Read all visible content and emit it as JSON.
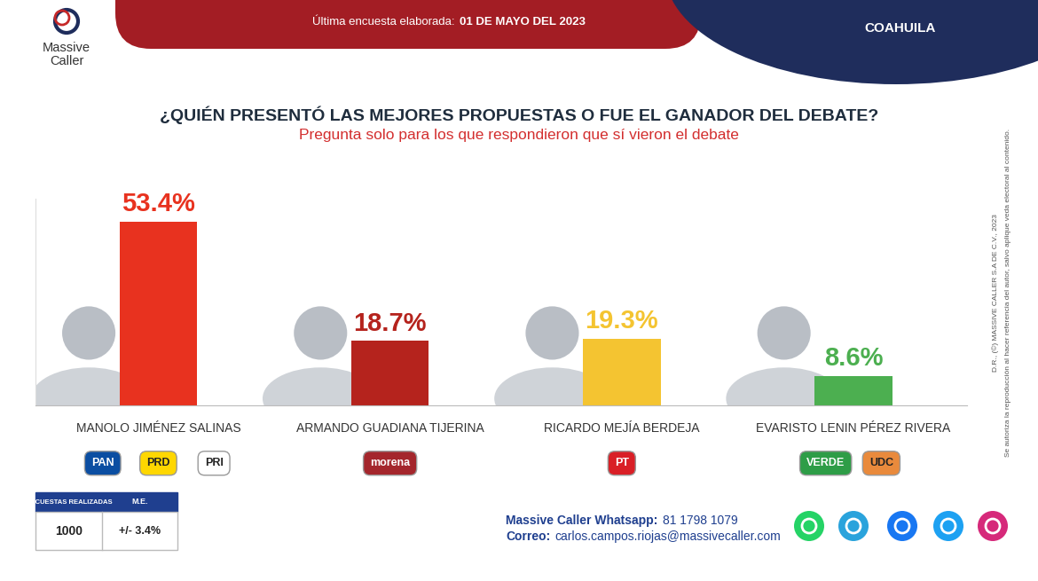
{
  "chart_data": {
    "type": "bar",
    "title": "¿QUIÉN PRESENTÓ LAS MEJORES PROPUESTAS O FUE EL GANADOR DEL DEBATE?",
    "subtitle": "Pregunta solo para los que respondieron que sí vieron el debate",
    "categories": [
      "MANOLO JIMÉNEZ SALINAS",
      "ARMANDO GUADIANA TIJERINA",
      "RICARDO MEJÍA BERDEJA",
      "EVARISTO LENIN PÉREZ RIVERA"
    ],
    "values": [
      53.4,
      18.7,
      19.3,
      8.6
    ],
    "value_labels": [
      "53.4%",
      "18.7%",
      "19.3%",
      "8.6%"
    ],
    "colors": [
      "#e8321f",
      "#b5231d",
      "#f4c431",
      "#4caf50"
    ],
    "data_labels": true,
    "ylim": [
      0,
      60
    ],
    "yticks": [],
    "tick_labels": "x",
    "parties": [
      [
        {
          "name": "PAN",
          "color": "#0b4ea2"
        },
        {
          "name": "PRD",
          "color": "#ffd700"
        },
        {
          "name": "PRI",
          "color": "#ffffff"
        }
      ],
      [
        {
          "name": "morena",
          "color": "#a4262c"
        }
      ],
      [
        {
          "name": "PT",
          "color": "#d91f26"
        }
      ],
      [
        {
          "name": "VERDE",
          "color": "#2e9d47"
        },
        {
          "name": "UDC",
          "color": "#e98a3c"
        }
      ]
    ],
    "header": {
      "logo": [
        "Massive",
        "Caller"
      ],
      "date_label": "Última encuesta elaborada:",
      "date": "01 DE MAYO DEL 2023",
      "region": "COAHUILA"
    },
    "survey": {
      "headers": [
        "ENCUESTAS REALIZADAS",
        "M.E."
      ],
      "count": 1000,
      "margin_of_error": "+/- 3.4%"
    },
    "contact": [
      {
        "label": "Massive Caller Whatsapp:",
        "value": "81 1798 1079"
      },
      {
        "label": "Correo:",
        "value": "carlos.campos.riojas@massivecaller.com"
      }
    ],
    "notes": [
      "D.R., (©) MASSIVE CALLER S.A DE C.V., 2023",
      "Se autoriza la reproducción al hacer referencia del autor, salvo aplique veda electoral al contenido."
    ]
  }
}
